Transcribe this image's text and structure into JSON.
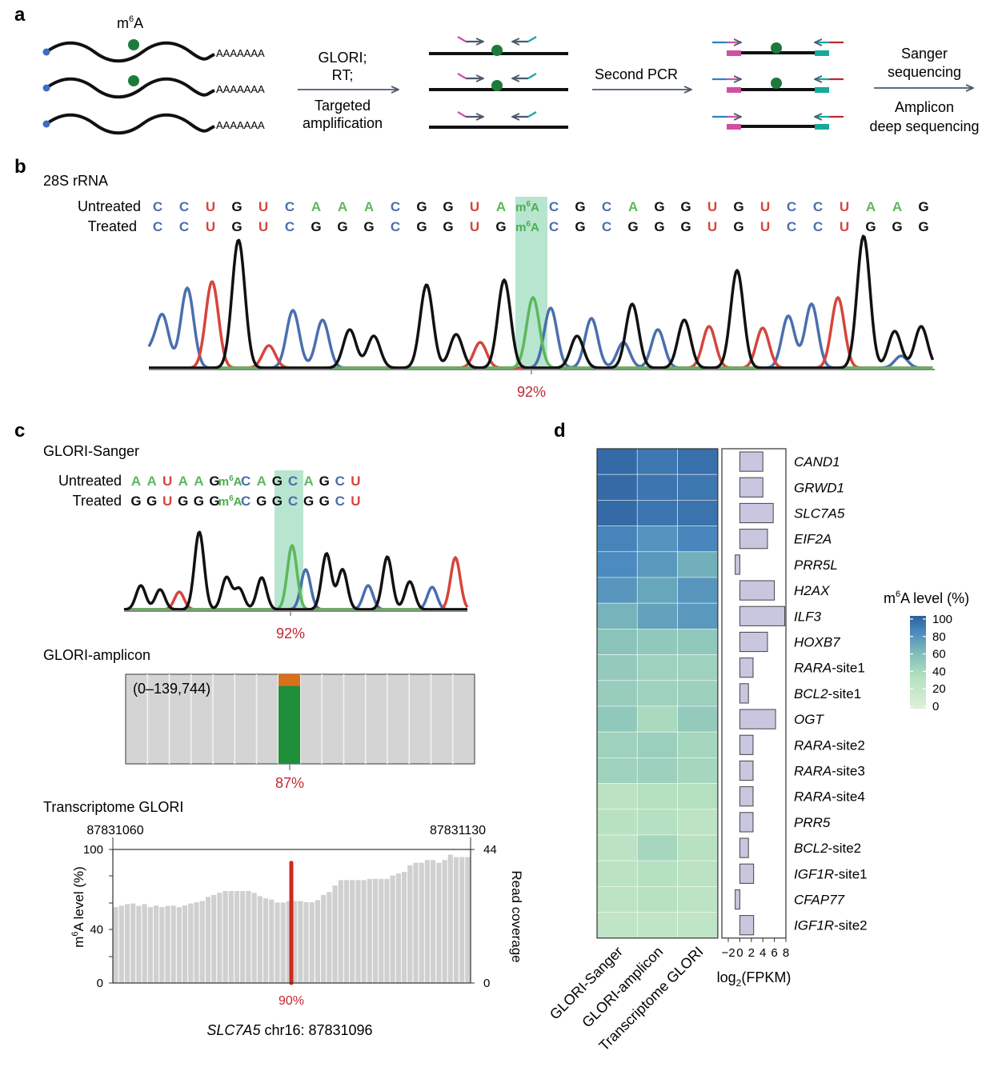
{
  "colors": {
    "A": "#5cb85c",
    "C": "#4a6fae",
    "G": "#111111",
    "U": "#d6453d",
    "m6A": "#4cae4c",
    "pct": "#c0282e",
    "highlight": "#9fdcbf",
    "dot": "#1e7a3c",
    "cap": "#3a6fc4",
    "arrow": "#4a5a6e",
    "primerL": "#d14fa0",
    "primerR": "#16a89c",
    "adapterL": "#2a83c4",
    "adapterR": "#c0282e",
    "bar": "#c9c6e0",
    "amplicon_green": "#1f8f3a",
    "amplicon_orange": "#d9701b",
    "coverage": "#d0d0d0",
    "site": "#d1281f"
  },
  "panel_a": {
    "letter": "a",
    "m6a_label": "m6A",
    "polyA": "AAAAAAA",
    "step1": [
      "GLORI;",
      "RT;"
    ],
    "step1_below": [
      "Targeted",
      "amplification"
    ],
    "step2": "Second PCR",
    "step3_top": [
      "Sanger",
      "sequencing"
    ],
    "step3_bottom": [
      "Amplicon",
      "deep sequencing"
    ]
  },
  "panel_b": {
    "letter": "b",
    "title": "28S rRNA",
    "row1_label": "Untreated",
    "row2_label": "Treated",
    "untreated": [
      "C",
      "C",
      "U",
      "G",
      "U",
      "C",
      "A",
      "A",
      "A",
      "C",
      "G",
      "G",
      "U",
      "A",
      "m6A",
      "C",
      "G",
      "C",
      "A",
      "G",
      "G",
      "U",
      "G",
      "U",
      "C",
      "C",
      "U",
      "A",
      "A",
      "G"
    ],
    "treated": [
      "C",
      "C",
      "U",
      "G",
      "U",
      "C",
      "G",
      "G",
      "G",
      "C",
      "G",
      "G",
      "U",
      "G",
      "m6A",
      "C",
      "G",
      "C",
      "G",
      "G",
      "G",
      "U",
      "G",
      "U",
      "C",
      "C",
      "U",
      "G",
      "G",
      "G"
    ],
    "percent": "92%"
  },
  "panel_c": {
    "letter": "c",
    "sanger_title": "GLORI-Sanger",
    "row1_label": "Untreated",
    "row2_label": "Treated",
    "untreated": [
      "A",
      "A",
      "U",
      "A",
      "A",
      "G",
      "m6A",
      "C",
      "A",
      "G",
      "C",
      "A",
      "G",
      "C",
      "U"
    ],
    "treated": [
      "G",
      "G",
      "U",
      "G",
      "G",
      "G",
      "m6A",
      "C",
      "G",
      "G",
      "C",
      "G",
      "G",
      "C",
      "U"
    ],
    "sanger_percent": "92%",
    "amplicon_title": "GLORI-amplicon",
    "amplicon_range": "(0–139,744)",
    "amplicon_percent": "87%",
    "amplicon_value": 0.87,
    "tx_title": "Transcriptome GLORI",
    "coord_left": "87831060",
    "coord_right": "87831130",
    "y_left_label": "m6A level (%)",
    "y_right_label": "Read coverage",
    "y_left_ticks": [
      "100",
      "40",
      "0"
    ],
    "y_right_ticks": [
      "44",
      "0"
    ],
    "tx_percent": "90%",
    "site_value": 90,
    "gene_label": "SLC7A5",
    "gene_coord": " chr16: 87831096",
    "coverage": [
      25,
      25.5,
      26,
      26.2,
      25.4,
      26,
      25,
      25.5,
      25,
      25.4,
      25.5,
      25,
      25.6,
      26.2,
      26.6,
      27,
      28.4,
      29,
      29.7,
      30.3,
      30.3,
      30.3,
      30.3,
      30.3,
      29.7,
      28.6,
      27.9,
      27.5,
      26.5,
      26.5,
      27,
      27,
      27,
      26.6,
      26.6,
      27.3,
      29,
      30,
      32.1,
      33.9,
      33.9,
      33.9,
      33.9,
      33.9,
      34.3,
      34.3,
      34.3,
      34.3,
      35.4,
      36.1,
      36.6,
      38.8,
      39.6,
      39.6,
      40.5,
      40.5,
      39.6,
      40.5,
      42.3,
      41.5,
      41.5,
      41.5
    ]
  },
  "panel_d": {
    "letter": "d",
    "genes": [
      "CAND1",
      "GRWD1",
      "SLC7A5",
      "EIF2A",
      "PRR5L",
      "H2AX",
      "ILF3",
      "HOXB7",
      "RARA-site1",
      "BCL2-site1",
      "OGT",
      "RARA-site2",
      "RARA-site3",
      "RARA-site4",
      "PRR5",
      "BCL2-site2",
      "IGF1R-site1",
      "CFAP77",
      "IGF1R-site2"
    ],
    "gene_italic": [
      "CAND1",
      "GRWD1",
      "SLC7A5",
      "EIF2A",
      "PRR5L",
      "H2AX",
      "ILF3",
      "HOXB7",
      "RARA",
      "BCL2",
      "OGT",
      "RARA",
      "RARA",
      "RARA",
      "PRR5",
      "BCL2",
      "IGF1R",
      "CFAP77",
      "IGF1R"
    ],
    "gene_suffix": [
      "",
      "",
      "",
      "",
      "",
      "",
      "",
      "",
      "-site1",
      "-site1",
      "",
      "-site2",
      "-site3",
      "-site4",
      "",
      "-site2",
      "-site1",
      "",
      "-site2"
    ],
    "columns": [
      "GLORI-Sanger",
      "GLORI-amplicon",
      "Transcriptome GLORI"
    ],
    "m6a_levels": [
      [
        95,
        90,
        93
      ],
      [
        95,
        91,
        90
      ],
      [
        95,
        91,
        92
      ],
      [
        85,
        78,
        84
      ],
      [
        82,
        76,
        66
      ],
      [
        77,
        70,
        77
      ],
      [
        64,
        72,
        76
      ],
      [
        55,
        52,
        52
      ],
      [
        50,
        45,
        45
      ],
      [
        48,
        45,
        46
      ],
      [
        52,
        40,
        50
      ],
      [
        45,
        47,
        42
      ],
      [
        45,
        46,
        42
      ],
      [
        30,
        35,
        35
      ],
      [
        32,
        34,
        28
      ],
      [
        30,
        42,
        32
      ],
      [
        30,
        33,
        30
      ],
      [
        29,
        32,
        28
      ],
      [
        25,
        25,
        25
      ]
    ],
    "log2_fpkm": [
      4,
      4,
      5.8,
      4.8,
      -0.8,
      6,
      7.8,
      4.8,
      2.3,
      1.5,
      6.2,
      2.3,
      2.3,
      2.3,
      2.3,
      1.5,
      2.4,
      -0.8,
      2.4
    ],
    "x_ticks": [
      "−2",
      "0",
      "2",
      "4",
      "6",
      "8"
    ],
    "x_tick_values": [
      -2,
      0,
      2,
      4,
      6,
      8
    ],
    "x_label_main": "log",
    "x_label_sub": "2",
    "x_label_rest": "(FPKM)",
    "legend_title": "m6A level (%)",
    "legend_ticks": [
      "100",
      "80",
      "60",
      "40",
      "20",
      "0"
    ]
  }
}
